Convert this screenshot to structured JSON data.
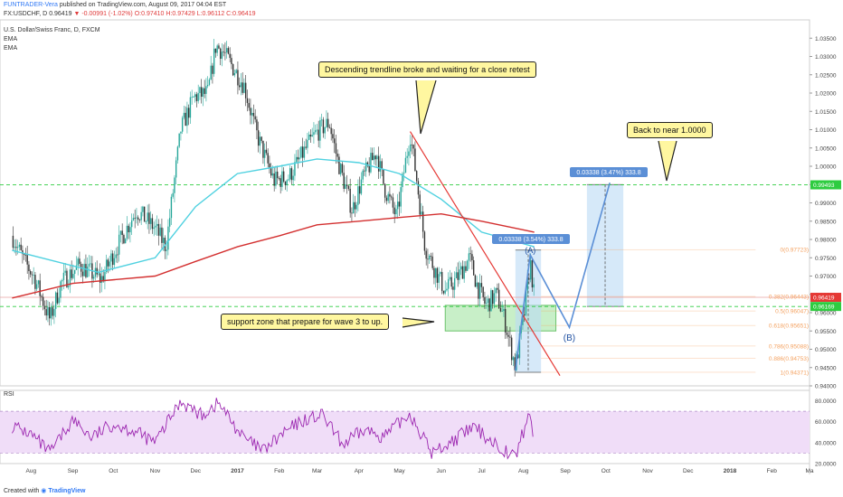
{
  "header": {
    "user": "FUNTRADER-Vera",
    "published": "published on TradingView.com, August 09, 2017 04:04 EST",
    "symbol": "FX:USDCHF, D",
    "price": "0.96419",
    "change": "-0.00991 (-1.02%)",
    "ohlc": "O:0.97410 H:0.97429 L:0.96112 C:0.96419"
  },
  "overlay": {
    "title": "U.S. Dollar/Swiss Franc, D, FXCM",
    "ema1": "EMA",
    "ema2": "EMA"
  },
  "footer": {
    "created": "Created with",
    "brand": "TradingView"
  },
  "annotations": {
    "trendline_note": "Descending trendline broke and waiting for a close retest",
    "support_note": "support zone that prepare for wave 3 to up.",
    "target_note": "Back to near 1.0000",
    "wave_a": "(A)",
    "wave_b": "(B)",
    "proj1": "0.03338 (3.54%) 333.8",
    "proj2": "0.03338 (3.47%) 333.8"
  },
  "colors": {
    "candle_up": "#26a69a",
    "candle_down": "#333333",
    "ema_fast": "#4fd1e0",
    "ema_slow": "#d32f2f",
    "trendline": "#e53935",
    "support_zone": "#9be29b",
    "projection": "#bbdaf5",
    "wave_path": "#5b8fd6",
    "rsi_line": "#9c27b0",
    "rsi_band": "#f0ddf8",
    "green_dash": "#2ecc40",
    "fib": "#f4a261"
  },
  "chart_data": {
    "type": "candlestick",
    "title": "U.S. Dollar/Swiss Franc, D, FXCM",
    "symbol": "FX:USDCHF",
    "ylim": [
      0.94,
      1.04
    ],
    "y_ticks": [
      "1.03500",
      "1.03000",
      "1.02500",
      "1.02000",
      "1.01500",
      "1.01000",
      "1.00500",
      "1.00000",
      "0.99500",
      "0.99000",
      "0.98500",
      "0.98000",
      "0.97500",
      "0.97000",
      "0.96500",
      "0.96000",
      "0.95500",
      "0.95000",
      "0.94500",
      "0.94000"
    ],
    "x_ticks": [
      "Aug",
      "Sep",
      "Oct",
      "Nov",
      "Dec",
      "2017",
      "Feb",
      "Mar",
      "Apr",
      "May",
      "Jun",
      "Jul",
      "Aug",
      "Sep",
      "Oct",
      "Nov",
      "Dec",
      "2018",
      "Feb",
      "Ma"
    ],
    "price_key_points": [
      {
        "date": "2016-07-18",
        "close": 0.981
      },
      {
        "date": "2016-07-27",
        "close": 0.974
      },
      {
        "date": "2016-08-03",
        "close": 0.97
      },
      {
        "date": "2016-08-15",
        "close": 0.958
      },
      {
        "date": "2016-08-23",
        "close": 0.968
      },
      {
        "date": "2016-09-06",
        "close": 0.973
      },
      {
        "date": "2016-09-22",
        "close": 0.969
      },
      {
        "date": "2016-10-01",
        "close": 0.976
      },
      {
        "date": "2016-10-18",
        "close": 0.988
      },
      {
        "date": "2016-11-01",
        "close": 0.983
      },
      {
        "date": "2016-11-09",
        "close": 0.978
      },
      {
        "date": "2016-11-20",
        "close": 1.01
      },
      {
        "date": "2016-11-30",
        "close": 1.019
      },
      {
        "date": "2016-12-10",
        "close": 1.02
      },
      {
        "date": "2016-12-16",
        "close": 1.033
      },
      {
        "date": "2016-12-22",
        "close": 1.031
      },
      {
        "date": "2017-01-06",
        "close": 1.022
      },
      {
        "date": "2017-01-15",
        "close": 1.009
      },
      {
        "date": "2017-01-28",
        "close": 0.996
      },
      {
        "date": "2017-02-08",
        "close": 0.997
      },
      {
        "date": "2017-02-21",
        "close": 1.005
      },
      {
        "date": "2017-02-28",
        "close": 1.009
      },
      {
        "date": "2017-03-10",
        "close": 1.012
      },
      {
        "date": "2017-03-16",
        "close": 1.002
      },
      {
        "date": "2017-03-27",
        "close": 0.988
      },
      {
        "date": "2017-04-03",
        "close": 0.996
      },
      {
        "date": "2017-04-14",
        "close": 1.004
      },
      {
        "date": "2017-04-20",
        "close": 0.994
      },
      {
        "date": "2017-04-29",
        "close": 0.986
      },
      {
        "date": "2017-05-09",
        "close": 1.009
      },
      {
        "date": "2017-05-14",
        "close": 0.996
      },
      {
        "date": "2017-05-20",
        "close": 0.978
      },
      {
        "date": "2017-05-27",
        "close": 0.972
      },
      {
        "date": "2017-06-04",
        "close": 0.966
      },
      {
        "date": "2017-06-12",
        "close": 0.969
      },
      {
        "date": "2017-06-22",
        "close": 0.975
      },
      {
        "date": "2017-06-28",
        "close": 0.967
      },
      {
        "date": "2017-07-04",
        "close": 0.962
      },
      {
        "date": "2017-07-12",
        "close": 0.965
      },
      {
        "date": "2017-07-18",
        "close": 0.958
      },
      {
        "date": "2017-07-26",
        "close": 0.945
      },
      {
        "date": "2017-08-02",
        "close": 0.961
      },
      {
        "date": "2017-08-06",
        "close": 0.974
      },
      {
        "date": "2017-08-09",
        "close": 0.96419
      }
    ],
    "ema_fast": [
      {
        "date": "2016-07-18",
        "value": 0.977
      },
      {
        "date": "2016-09-20",
        "value": 0.971
      },
      {
        "date": "2016-11-01",
        "value": 0.975
      },
      {
        "date": "2016-12-01",
        "value": 0.989
      },
      {
        "date": "2017-01-01",
        "value": 0.998
      },
      {
        "date": "2017-02-01",
        "value": 1.0
      },
      {
        "date": "2017-03-01",
        "value": 1.002
      },
      {
        "date": "2017-04-01",
        "value": 1.001
      },
      {
        "date": "2017-05-01",
        "value": 0.998
      },
      {
        "date": "2017-06-01",
        "value": 0.991
      },
      {
        "date": "2017-07-01",
        "value": 0.982
      },
      {
        "date": "2017-08-09",
        "value": 0.978
      }
    ],
    "ema_slow": [
      {
        "date": "2016-07-18",
        "value": 0.964
      },
      {
        "date": "2016-09-01",
        "value": 0.968
      },
      {
        "date": "2016-11-01",
        "value": 0.97
      },
      {
        "date": "2016-12-01",
        "value": 0.974
      },
      {
        "date": "2017-01-01",
        "value": 0.978
      },
      {
        "date": "2017-02-01",
        "value": 0.981
      },
      {
        "date": "2017-03-01",
        "value": 0.984
      },
      {
        "date": "2017-04-01",
        "value": 0.985
      },
      {
        "date": "2017-05-01",
        "value": 0.986
      },
      {
        "date": "2017-06-01",
        "value": 0.987
      },
      {
        "date": "2017-07-01",
        "value": 0.985
      },
      {
        "date": "2017-08-09",
        "value": 0.982
      }
    ],
    "price_labels": [
      {
        "label": "0.99493",
        "value": 0.99493,
        "color": "#2ecc40"
      },
      {
        "label": "0.96419",
        "value": 0.96419,
        "color": "#e53935"
      },
      {
        "label": "0.96169",
        "value": 0.96169,
        "color": "#2ecc40"
      }
    ],
    "fibonacci": [
      {
        "label": "0(0.97723)",
        "value": 0.97723
      },
      {
        "label": "0.382(0.96443)",
        "value": 0.96443
      },
      {
        "label": "0.5(0.96047)",
        "value": 0.96047
      },
      {
        "label": "0.618(0.95651)",
        "value": 0.95651
      },
      {
        "label": "0.786(0.95088)",
        "value": 0.95088
      },
      {
        "label": "0.886(0.94753)",
        "value": 0.94753
      },
      {
        "label": "1(0.94371)",
        "value": 0.94371
      }
    ],
    "horizontal_levels": [
      0.99493,
      0.96169
    ],
    "trendline": [
      {
        "date": "2017-05-09",
        "value": 1.0095
      },
      {
        "date": "2017-08-28",
        "value": 0.9428
      }
    ],
    "support_zone": {
      "from": "2017-06-04",
      "to": "2017-08-25",
      "low": 0.955,
      "high": 0.962
    },
    "wave_path": [
      {
        "date": "2017-07-26",
        "value": 0.9442
      },
      {
        "date": "2017-08-06",
        "value": 0.9758
      },
      {
        "date": "2017-09-04",
        "value": 0.956
      },
      {
        "date": "2017-10-04",
        "value": 0.9955
      }
    ],
    "projections": [
      {
        "label": "0.03338 (3.54%) 333.8",
        "from": "2017-07-26",
        "to": "2017-08-14",
        "low": 0.9437,
        "high": 0.9771
      },
      {
        "label": "0.03338 (3.47%) 333.8",
        "from": "2017-09-17",
        "to": "2017-10-14",
        "low": 0.9617,
        "high": 0.995
      }
    ],
    "rsi": {
      "ylim": [
        20,
        90
      ],
      "y_ticks": [
        "80.0000",
        "60.0000",
        "40.0000",
        "20.0000"
      ],
      "band": [
        30,
        70
      ],
      "values": [
        {
          "date": "2016-07-18",
          "value": 56
        },
        {
          "date": "2016-08-01",
          "value": 48
        },
        {
          "date": "2016-08-15",
          "value": 30
        },
        {
          "date": "2016-09-01",
          "value": 62
        },
        {
          "date": "2016-09-15",
          "value": 45
        },
        {
          "date": "2016-10-01",
          "value": 58
        },
        {
          "date": "2016-10-15",
          "value": 52
        },
        {
          "date": "2016-11-01",
          "value": 40
        },
        {
          "date": "2016-11-20",
          "value": 80
        },
        {
          "date": "2016-12-05",
          "value": 66
        },
        {
          "date": "2016-12-18",
          "value": 78
        },
        {
          "date": "2017-01-05",
          "value": 45
        },
        {
          "date": "2017-01-20",
          "value": 32
        },
        {
          "date": "2017-02-05",
          "value": 50
        },
        {
          "date": "2017-02-20",
          "value": 62
        },
        {
          "date": "2017-03-05",
          "value": 66
        },
        {
          "date": "2017-03-20",
          "value": 38
        },
        {
          "date": "2017-04-05",
          "value": 52
        },
        {
          "date": "2017-04-20",
          "value": 46
        },
        {
          "date": "2017-05-09",
          "value": 68
        },
        {
          "date": "2017-05-25",
          "value": 30
        },
        {
          "date": "2017-06-10",
          "value": 42
        },
        {
          "date": "2017-06-25",
          "value": 55
        },
        {
          "date": "2017-07-10",
          "value": 40
        },
        {
          "date": "2017-07-26",
          "value": 26
        },
        {
          "date": "2017-08-05",
          "value": 68
        },
        {
          "date": "2017-08-09",
          "value": 44
        }
      ]
    }
  }
}
